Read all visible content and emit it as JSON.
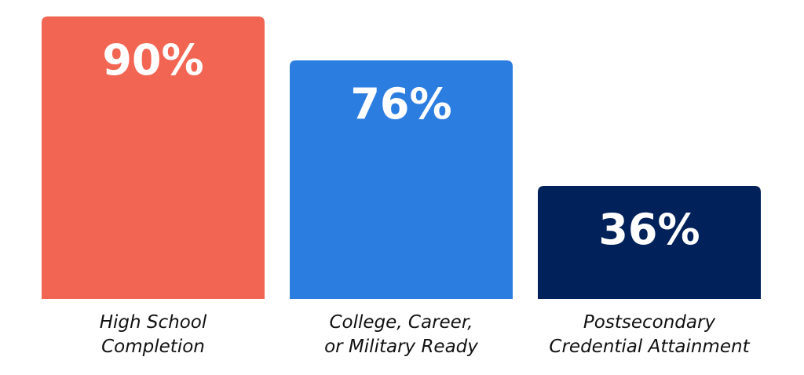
{
  "chart_data": {
    "type": "bar",
    "categories": [
      [
        "High School",
        "Completion"
      ],
      [
        "College, Career,",
        "or Military Ready"
      ],
      [
        "Postsecondary",
        "Credential Attainment"
      ]
    ],
    "values": [
      90,
      76,
      36
    ],
    "value_labels": [
      "90%",
      "76%",
      "36%"
    ],
    "colors": [
      "#F26552",
      "#2C7DE0",
      "#00215A"
    ],
    "ylim": [
      0,
      100
    ],
    "grid": false,
    "title": "",
    "xlabel": "",
    "ylabel": ""
  }
}
